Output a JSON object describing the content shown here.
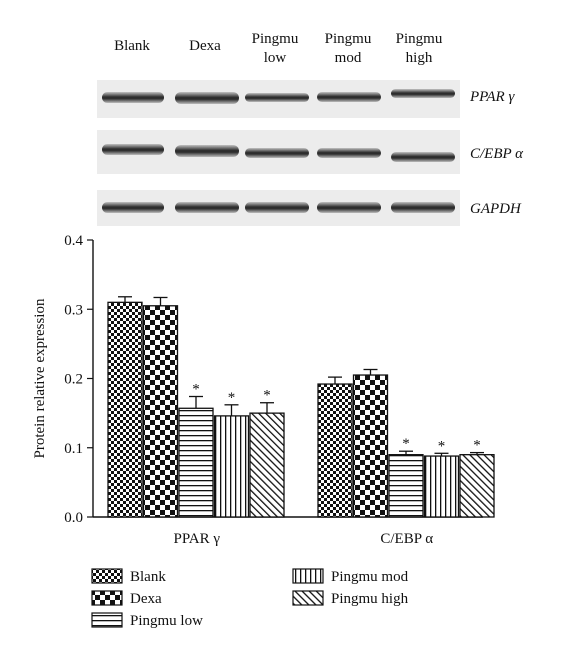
{
  "blot": {
    "lanes": [
      {
        "line1": "Blank",
        "line2": ""
      },
      {
        "line1": "Dexa",
        "line2": ""
      },
      {
        "line1": "Pingmu",
        "line2": "low"
      },
      {
        "line1": "Pingmu",
        "line2": "mod"
      },
      {
        "line1": "Pingmu",
        "line2": "high"
      }
    ],
    "proteins": [
      "PPAR γ",
      "C/EBP α",
      "GAPDH"
    ]
  },
  "chart_data": {
    "type": "bar",
    "categories": [
      "PPAR γ",
      "C/EBP α"
    ],
    "series": [
      {
        "name": "Blank",
        "pattern": "checker-small",
        "values": [
          0.31,
          0.192
        ],
        "errors": [
          0.008,
          0.01
        ],
        "significant": [
          false,
          false
        ]
      },
      {
        "name": "Dexa",
        "pattern": "checker-large",
        "values": [
          0.305,
          0.205
        ],
        "errors": [
          0.012,
          0.008
        ],
        "significant": [
          false,
          false
        ]
      },
      {
        "name": "Pingmu low",
        "pattern": "horizontal-lines",
        "values": [
          0.157,
          0.09
        ],
        "errors": [
          0.017,
          0.005
        ],
        "significant": [
          true,
          true
        ]
      },
      {
        "name": "Pingmu mod",
        "pattern": "vertical-lines",
        "values": [
          0.146,
          0.088
        ],
        "errors": [
          0.016,
          0.004
        ],
        "significant": [
          true,
          true
        ]
      },
      {
        "name": "Pingmu high",
        "pattern": "diagonal-lines",
        "values": [
          0.15,
          0.09
        ],
        "errors": [
          0.015,
          0.003
        ],
        "significant": [
          true,
          true
        ]
      }
    ],
    "significance_marker": "*",
    "ylabel": "Protein relative expression",
    "xlabel": "",
    "ylim": [
      0.0,
      0.4
    ],
    "yticks": [
      "0.0",
      "0.1",
      "0.2",
      "0.3",
      "0.4"
    ],
    "legend_position": "bottom",
    "grid": false
  }
}
